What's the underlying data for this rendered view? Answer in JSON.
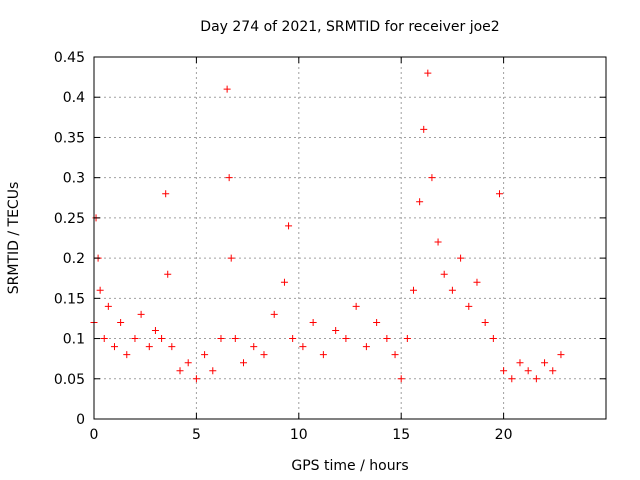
{
  "chart_data": {
    "type": "scatter",
    "title": "Day 274 of 2021, SRMTID for receiver joe2",
    "xlabel": "GPS time / hours",
    "ylabel": "SRMTID / TECUs",
    "xlim": [
      0,
      25
    ],
    "ylim": [
      0,
      0.45
    ],
    "xticks": [
      0,
      5,
      10,
      15,
      20
    ],
    "xtick_labels": [
      "0",
      "5",
      "10",
      "15",
      "20"
    ],
    "yticks": [
      0,
      0.05,
      0.1,
      0.15,
      0.2,
      0.25,
      0.3,
      0.35,
      0.4,
      0.45
    ],
    "ytick_labels": [
      "0",
      "0.05",
      "0.1",
      "0.15",
      "0.2",
      "0.25",
      "0.3",
      "0.35",
      "0.4",
      "0.45"
    ],
    "grid": true,
    "marker": "+",
    "series": [
      {
        "name": "joe2",
        "color": "#ff0000",
        "x": [
          0.0,
          0.1,
          0.2,
          0.3,
          0.5,
          0.7,
          1.0,
          1.3,
          1.6,
          2.0,
          2.3,
          2.7,
          3.0,
          3.3,
          3.5,
          3.6,
          3.8,
          4.2,
          4.6,
          5.0,
          5.4,
          5.8,
          6.2,
          6.5,
          6.6,
          6.7,
          6.9,
          7.3,
          7.8,
          8.3,
          8.8,
          9.3,
          9.5,
          9.7,
          10.2,
          10.7,
          11.2,
          11.8,
          12.3,
          12.8,
          13.3,
          13.8,
          14.3,
          14.7,
          15.0,
          15.3,
          15.6,
          15.9,
          16.1,
          16.3,
          16.5,
          16.8,
          17.1,
          17.5,
          17.9,
          18.3,
          18.7,
          19.1,
          19.5,
          19.8,
          20.0,
          20.4,
          20.8,
          21.2,
          21.6,
          22.0,
          22.4,
          22.8
        ],
        "y": [
          0.12,
          0.25,
          0.2,
          0.16,
          0.1,
          0.14,
          0.09,
          0.12,
          0.08,
          0.1,
          0.13,
          0.09,
          0.11,
          0.1,
          0.28,
          0.18,
          0.09,
          0.06,
          0.07,
          0.05,
          0.08,
          0.06,
          0.1,
          0.41,
          0.3,
          0.2,
          0.1,
          0.07,
          0.09,
          0.08,
          0.13,
          0.17,
          0.24,
          0.1,
          0.09,
          0.12,
          0.08,
          0.11,
          0.1,
          0.14,
          0.09,
          0.12,
          0.1,
          0.08,
          0.05,
          0.1,
          0.16,
          0.27,
          0.36,
          0.43,
          0.3,
          0.22,
          0.18,
          0.16,
          0.2,
          0.14,
          0.17,
          0.12,
          0.1,
          0.28,
          0.06,
          0.05,
          0.07,
          0.06,
          0.05,
          0.07,
          0.06,
          0.08
        ]
      }
    ]
  }
}
